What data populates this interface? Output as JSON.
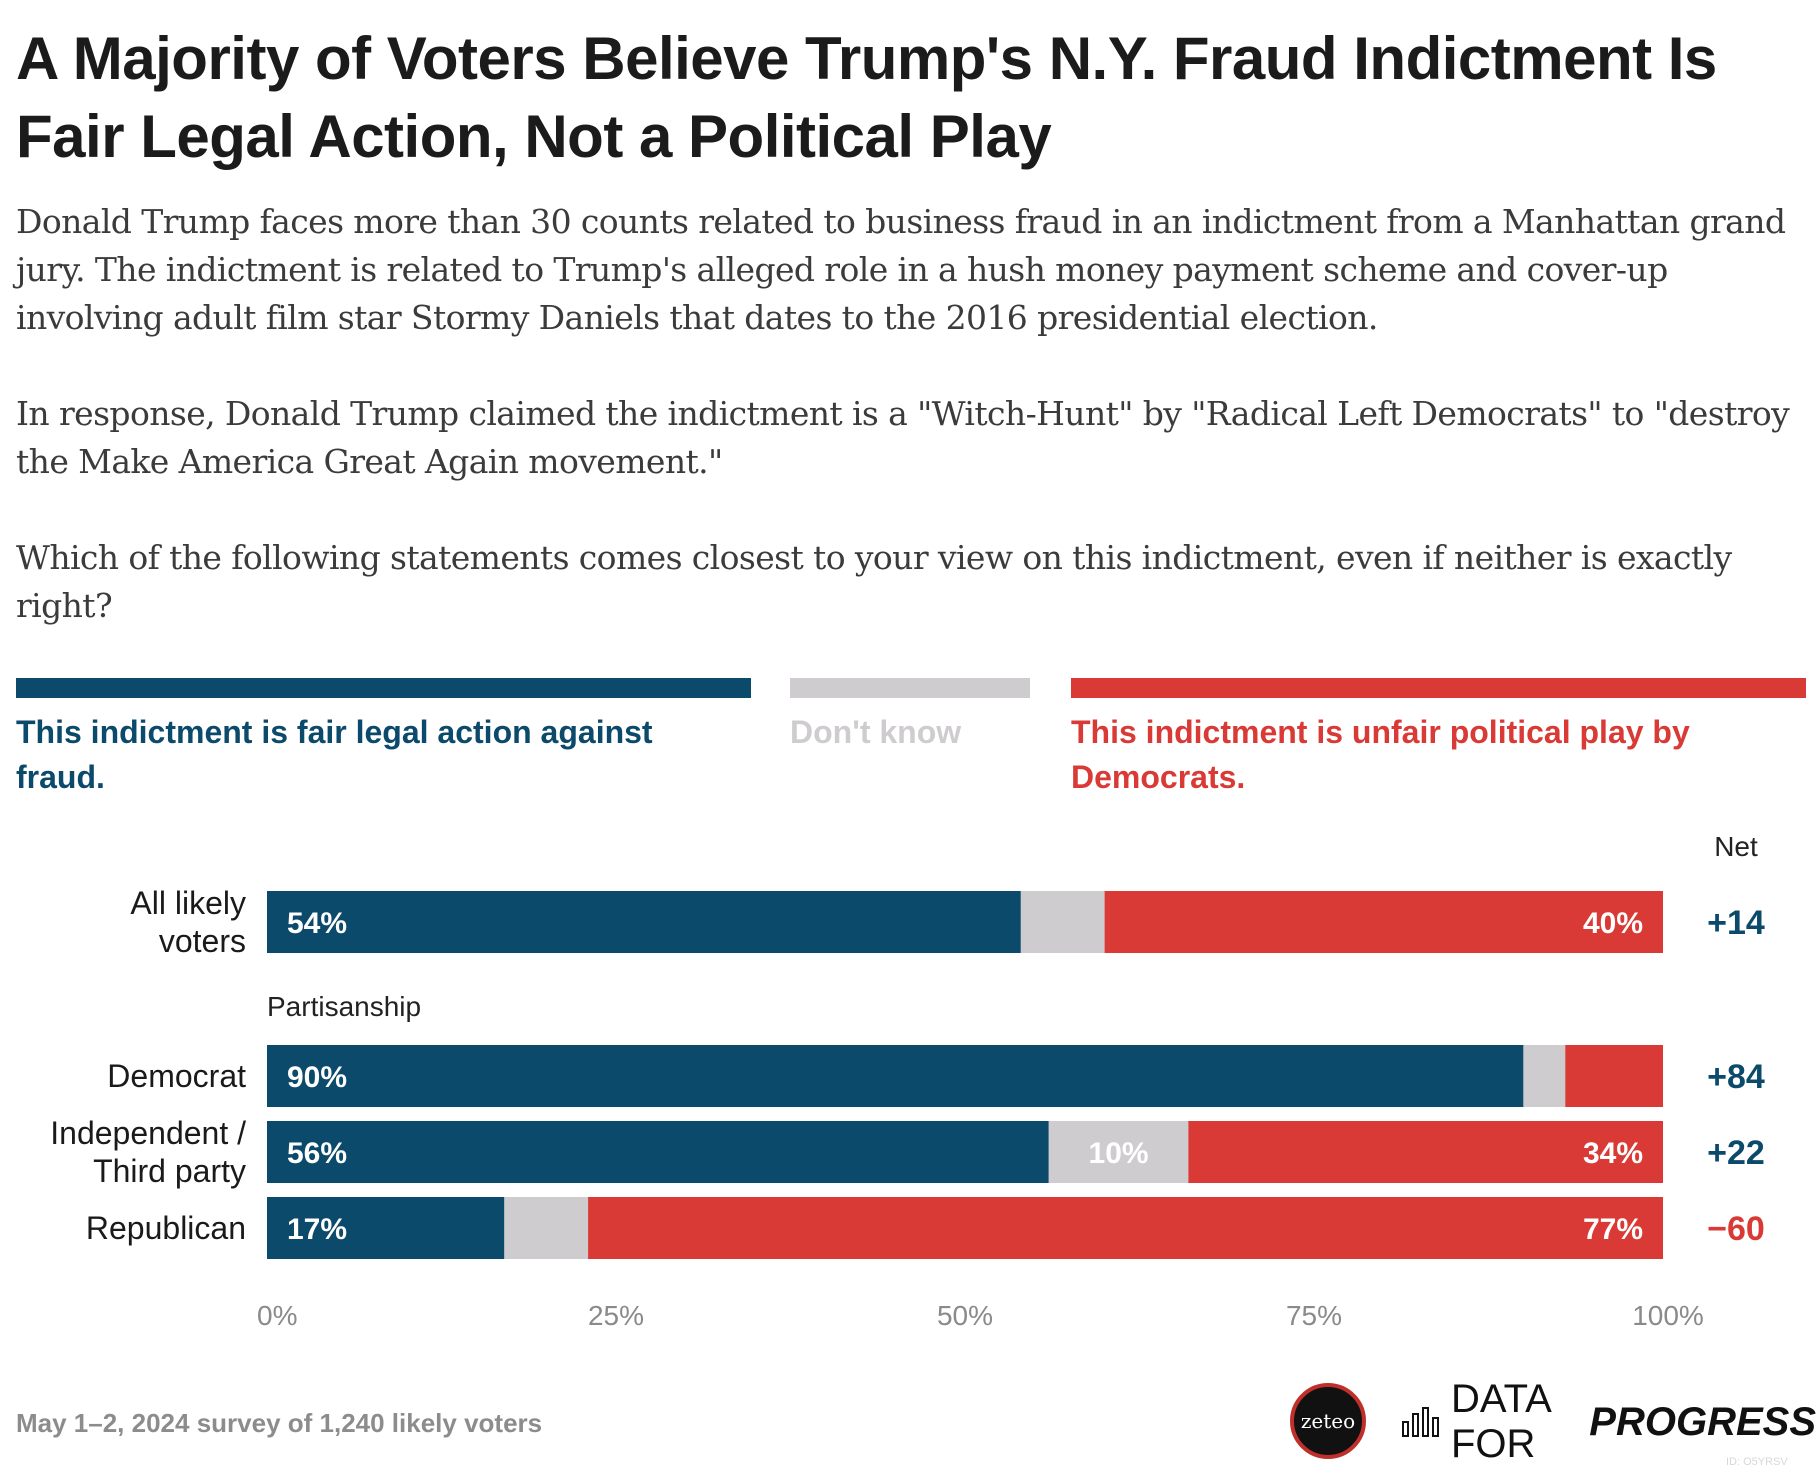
{
  "title": "A Majority of Voters Believe Trump's N.Y. Fraud Indictment Is Fair Legal Action, Not a Political Play",
  "subtitle": [
    "Donald Trump faces more than 30 counts related to business fraud in an indictment from a Manhattan grand jury. The indictment is related to Trump's alleged role in a hush money payment scheme and cover-up involving adult film star Stormy Daniels that dates to the 2016 presidential election.",
    "In response, Donald Trump claimed the indictment is a \"Witch-Hunt\" by \"Radical Left Democrats\" to \"destroy the Make America Great Again movement.\"",
    "Which of the following statements comes closest to your view on this indictment, even if neither is exactly right?"
  ],
  "colors": {
    "fair": "#0c4a6b",
    "dontknow": "#cfcccf",
    "unfair": "#d93a35"
  },
  "legend": {
    "fair": "This indictment is fair legal action against fraud.",
    "dontknow": "Don't know",
    "unfair": "This indictment is unfair political play by Democrats."
  },
  "chart_data": {
    "type": "bar",
    "orientation": "horizontal",
    "stacked": true,
    "net_header": "Net",
    "group_label": "Partisanship",
    "xlim": [
      0,
      100
    ],
    "x_ticks": [
      "0%",
      "25%",
      "50%",
      "75%",
      "100%"
    ],
    "categories": [
      "All likely voters",
      "Democrat",
      "Independent / Third party",
      "Republican"
    ],
    "series": [
      {
        "name": "This indictment is fair legal action against fraud.",
        "values": [
          54,
          90,
          56,
          17
        ],
        "labels": [
          "54%",
          "90%",
          "56%",
          "17%"
        ]
      },
      {
        "name": "Don't know",
        "values": [
          6,
          3,
          10,
          6
        ],
        "labels": [
          "",
          "",
          "10%",
          ""
        ]
      },
      {
        "name": "This indictment is unfair political play by Democrats.",
        "values": [
          40,
          7,
          34,
          77
        ],
        "labels": [
          "40%",
          "",
          "34%",
          "77%"
        ]
      }
    ],
    "net": [
      "+14",
      "+84",
      "+22",
      "−60"
    ],
    "net_sign": [
      "positive",
      "positive",
      "positive",
      "negative"
    ]
  },
  "footer": {
    "source": "May 1–2, 2024 survey of 1,240 likely voters",
    "zeteo": "zeteo",
    "dfp_light": "DATA FOR",
    "dfp_bold": "PROGRESS",
    "chart_id": "ID: O5YRSV"
  }
}
